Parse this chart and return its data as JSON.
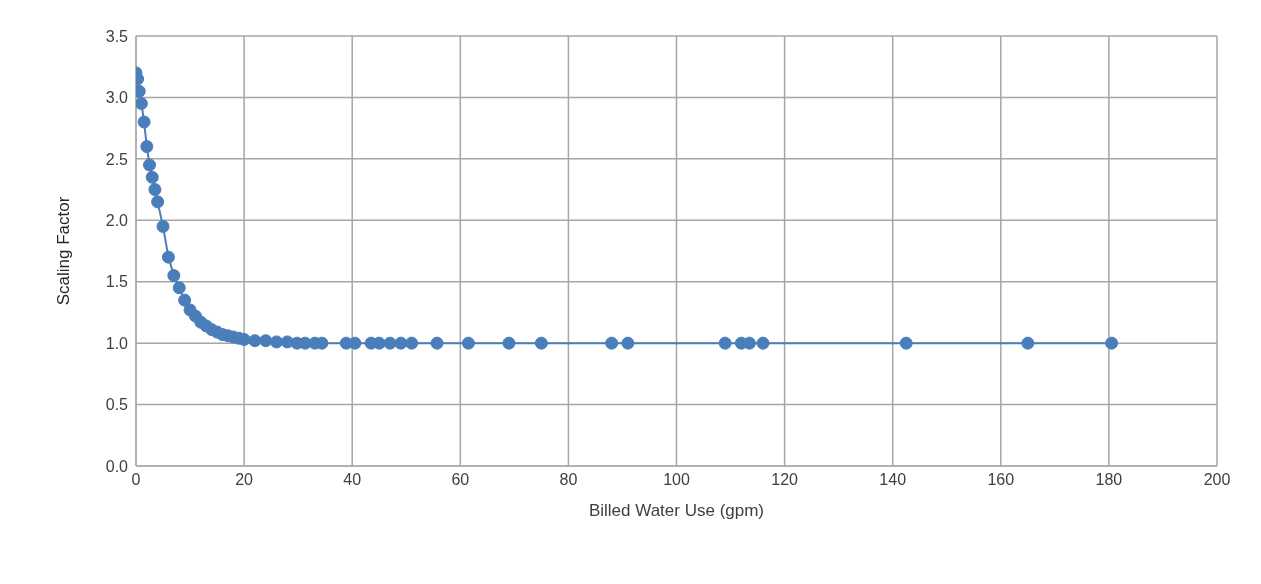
{
  "chart_data": {
    "type": "line",
    "xlabel": "Billed Water Use (gpm)",
    "ylabel": "Scaling Factor",
    "x": [
      0,
      0.3,
      0.6,
      1,
      1.5,
      2,
      2.5,
      3,
      3.5,
      4,
      5,
      6,
      7,
      8,
      9,
      10,
      11,
      12,
      13,
      14,
      15,
      16,
      17,
      18,
      19,
      20,
      22,
      24,
      26,
      28,
      29.8,
      31.3,
      33.1,
      34.4,
      38.9,
      40.5,
      43.5,
      45,
      47,
      49,
      51,
      55.7,
      61.5,
      69,
      75,
      88,
      91,
      109,
      112,
      113.5,
      116,
      142.5,
      165,
      180.5
    ],
    "series": [
      {
        "color": "#4a7ebb",
        "values": [
          3.2,
          3.15,
          3.05,
          2.95,
          2.8,
          2.6,
          2.45,
          2.35,
          2.25,
          2.15,
          1.95,
          1.7,
          1.55,
          1.45,
          1.35,
          1.27,
          1.22,
          1.17,
          1.14,
          1.11,
          1.09,
          1.07,
          1.06,
          1.05,
          1.04,
          1.03,
          1.02,
          1.02,
          1.01,
          1.01,
          1,
          1,
          1,
          1,
          1,
          1,
          1,
          1,
          1,
          1,
          1,
          1,
          1,
          1,
          1,
          1,
          1,
          1,
          1,
          1,
          1,
          1,
          1,
          1
        ]
      }
    ],
    "xlim": [
      0,
      200
    ],
    "xticks": [
      0,
      20,
      40,
      60,
      80,
      100,
      120,
      140,
      160,
      180,
      200
    ],
    "ylim": [
      0,
      3.5
    ],
    "yticks": [
      {
        "value": 0,
        "label": "0.0"
      },
      {
        "value": 0.5,
        "label": "0.5"
      },
      {
        "value": 1,
        "label": "1.0"
      },
      {
        "value": 1.5,
        "label": "1.5"
      },
      {
        "value": 2,
        "label": "2.0"
      },
      {
        "value": 2.5,
        "label": "2.5"
      },
      {
        "value": 3,
        "label": "3.0"
      },
      {
        "value": 3.5,
        "label": "3.5"
      }
    ],
    "grid": true,
    "marker": "circle",
    "line_style": "solid"
  }
}
